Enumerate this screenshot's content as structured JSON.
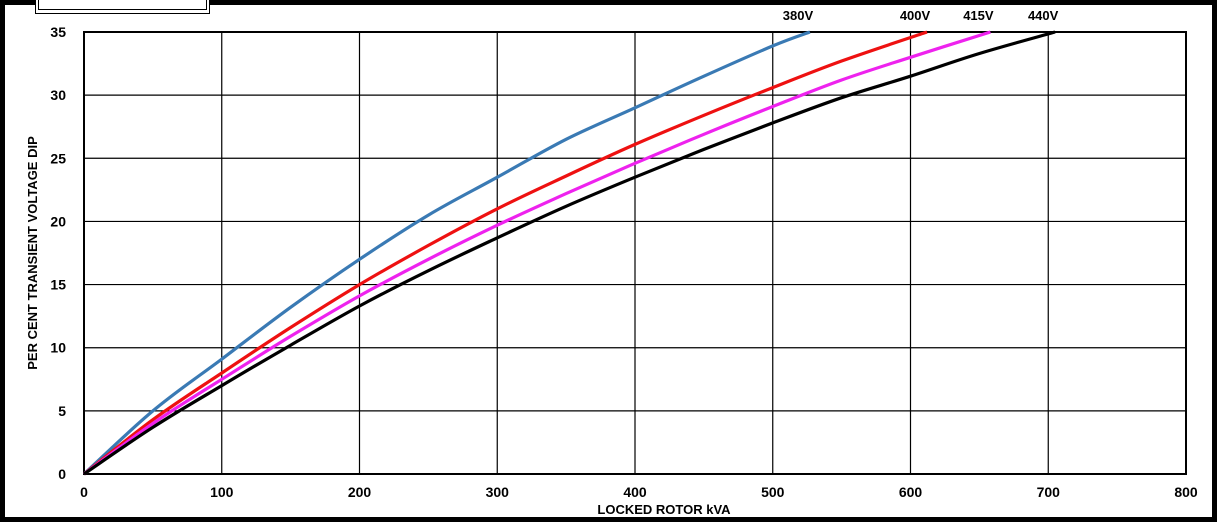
{
  "chart_data": {
    "type": "line",
    "title": "",
    "xlabel": "LOCKED ROTOR kVA",
    "ylabel": "PER CENT TRANSIENT VOLTAGE DIP",
    "xlim": [
      0,
      800
    ],
    "ylim": [
      0,
      35
    ],
    "xticks": [
      0,
      100,
      200,
      300,
      400,
      500,
      600,
      700,
      800
    ],
    "yticks": [
      0,
      5,
      10,
      15,
      20,
      25,
      30,
      35
    ],
    "grid": true,
    "legend": "end-of-line labels above plot area",
    "series": [
      {
        "name": "380V",
        "color": "#3a7ab4",
        "x": [
          0,
          50,
          100,
          150,
          200,
          250,
          300,
          350,
          400,
          450,
          500,
          527
        ],
        "y": [
          0,
          5.0,
          9.1,
          13.2,
          17.0,
          20.5,
          23.5,
          26.5,
          29.0,
          31.5,
          33.9,
          35
        ]
      },
      {
        "name": "400V",
        "color": "#ee1111",
        "x": [
          0,
          50,
          100,
          150,
          200,
          250,
          300,
          350,
          400,
          450,
          500,
          550,
          612
        ],
        "y": [
          0,
          4.3,
          8.0,
          11.6,
          15.0,
          18.1,
          21.0,
          23.6,
          26.1,
          28.4,
          30.6,
          32.7,
          35
        ]
      },
      {
        "name": "415V",
        "color": "#ee22ee",
        "x": [
          0,
          50,
          100,
          150,
          200,
          250,
          300,
          350,
          400,
          450,
          500,
          550,
          600,
          658
        ],
        "y": [
          0,
          4.0,
          7.5,
          10.9,
          14.1,
          17.0,
          19.7,
          22.2,
          24.6,
          26.9,
          29.1,
          31.2,
          33.0,
          35
        ]
      },
      {
        "name": "440V",
        "color": "#000000",
        "x": [
          0,
          50,
          100,
          150,
          200,
          250,
          300,
          350,
          400,
          450,
          500,
          550,
          600,
          650,
          705
        ],
        "y": [
          0,
          3.7,
          7.0,
          10.2,
          13.3,
          16.1,
          18.7,
          21.2,
          23.5,
          25.7,
          27.8,
          29.8,
          31.5,
          33.3,
          35
        ]
      }
    ]
  }
}
